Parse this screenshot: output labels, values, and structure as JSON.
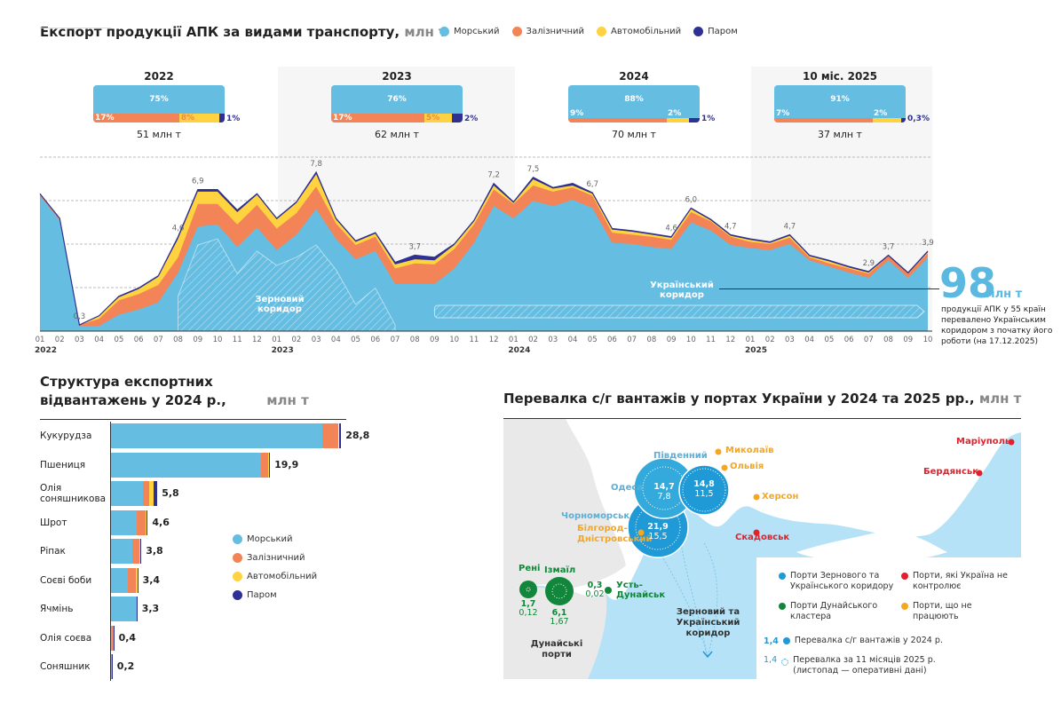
{
  "colors": {
    "marine": "#66bde2",
    "rail": "#f28457",
    "auto": "#ffd23f",
    "ferry": "#2e3192",
    "grain": "#1f9ad6",
    "danube": "#12873b",
    "occupied": "#e3202b",
    "idle": "#f5a623"
  },
  "top": {
    "title": "Експорт продукції АПК за видами транспорту,",
    "unit": "млн т",
    "legend": [
      "Морський",
      "Залізничний",
      "Автомобільний",
      "Паром"
    ],
    "years": [
      {
        "label": "2022",
        "total": "51 млн т",
        "marine": "75%",
        "rail": "17%",
        "auto": "8%",
        "ferry": "1%",
        "shares": [
          75,
          17,
          8,
          1
        ]
      },
      {
        "label": "2023",
        "total": "62 млн т",
        "marine": "76%",
        "rail": "17%",
        "auto": "5%",
        "ferry": "2%",
        "shares": [
          76,
          17,
          5,
          2
        ]
      },
      {
        "label": "2024",
        "total": "70 млн т",
        "marine": "88%",
        "rail": "9%",
        "auto": "2%",
        "ferry": "1%",
        "shares": [
          88,
          9,
          2,
          1
        ]
      },
      {
        "label": "10 міс. 2025",
        "total": "37 млн т",
        "marine": "91%",
        "rail": "7%",
        "auto": "2%",
        "ferry": "0,3%",
        "shares": [
          91,
          7,
          2,
          0.3
        ]
      }
    ],
    "grain_label": "Зерновий коридор",
    "ukr_label": "Український коридор",
    "big_number": "98",
    "big_unit": "млн т",
    "big_text": [
      "продукції АПК у 55 країн",
      "перевалено Українським",
      "коридором з початку його",
      "роботи (на 17.12.2025)"
    ]
  },
  "chart_data": [
    {
      "type": "area",
      "stacked": true,
      "xlabel": "",
      "ylabel": "",
      "grid": true,
      "months": [
        "01",
        "02",
        "03",
        "04",
        "05",
        "06",
        "07",
        "08",
        "09",
        "10",
        "11",
        "12",
        "01",
        "02",
        "03",
        "04",
        "05",
        "06",
        "07",
        "08",
        "09",
        "10",
        "11",
        "12",
        "01",
        "02",
        "03",
        "04",
        "05",
        "06",
        "07",
        "08",
        "09",
        "10",
        "11",
        "12",
        "01",
        "02",
        "03",
        "04",
        "05",
        "06",
        "07",
        "08",
        "09",
        "10"
      ],
      "year_ticks": [
        {
          "index": 0,
          "label": "2022"
        },
        {
          "index": 12,
          "label": "2023"
        },
        {
          "index": 24,
          "label": "2024"
        },
        {
          "index": 36,
          "label": "2025"
        }
      ],
      "series": [
        {
          "name": "Морський",
          "values": [
            6.6,
            5.4,
            0.25,
            0.25,
            0.8,
            1.05,
            1.4,
            2.85,
            5.1,
            5.2,
            4.1,
            5.05,
            3.95,
            4.7,
            5.95,
            4.5,
            3.5,
            3.9,
            2.3,
            2.3,
            2.3,
            3.05,
            4.3,
            6.1,
            5.5,
            6.35,
            6.1,
            6.4,
            6.0,
            4.3,
            4.25,
            4.1,
            4.0,
            5.3,
            4.9,
            4.2,
            4.05,
            3.95,
            4.25,
            3.45,
            3.15,
            2.85,
            2.6,
            3.45,
            2.6,
            3.6
          ]
        },
        {
          "name": "Залізничний",
          "values": [
            0.1,
            0.1,
            0.05,
            0.35,
            0.7,
            0.75,
            0.85,
            0.75,
            1.1,
            1.0,
            1.1,
            1.1,
            1.05,
            1.05,
            1.1,
            0.75,
            0.7,
            0.7,
            0.75,
            1.0,
            0.95,
            0.95,
            0.9,
            0.8,
            0.7,
            0.75,
            0.7,
            0.6,
            0.6,
            0.5,
            0.45,
            0.5,
            0.45,
            0.5,
            0.45,
            0.4,
            0.3,
            0.3,
            0.3,
            0.15,
            0.15,
            0.2,
            0.2,
            0.2,
            0.2,
            0.2
          ]
        },
        {
          "name": "Автомобільний",
          "values": [
            0,
            0,
            0,
            0.15,
            0.15,
            0.25,
            0.4,
            0.9,
            0.6,
            0.6,
            0.6,
            0.5,
            0.45,
            0.5,
            0.6,
            0.2,
            0.15,
            0.15,
            0.2,
            0.2,
            0.2,
            0.2,
            0.15,
            0.2,
            0.05,
            0.3,
            0.15,
            0.1,
            0.1,
            0.15,
            0.15,
            0.1,
            0.1,
            0.15,
            0.05,
            0.05,
            0.1,
            0.05,
            0.1,
            0.05,
            0.1,
            0.05,
            0.05,
            0,
            0,
            0.05
          ]
        },
        {
          "name": "Паром",
          "values": [
            0,
            0,
            0,
            0,
            0.05,
            0.05,
            0.05,
            0.1,
            0.1,
            0.1,
            0.1,
            0.05,
            0.05,
            0.05,
            0.1,
            0.05,
            0.05,
            0.05,
            0.1,
            0.2,
            0.15,
            0.05,
            0.05,
            0.1,
            0.05,
            0.1,
            0.05,
            0.1,
            0.05,
            0.05,
            0.05,
            0.05,
            0.05,
            0.05,
            0.05,
            0.05,
            0.05,
            0.05,
            0.05,
            0.05,
            0.05,
            0.05,
            0.05,
            0.05,
            0.05,
            0.05
          ]
        }
      ],
      "grain_corridor": {
        "start_index": 7,
        "values": [
          1.7,
          4.2,
          4.5,
          2.8,
          3.9,
          3.2,
          3.6,
          4.2,
          3.0,
          1.3,
          2.1,
          0.3
        ]
      },
      "ukrainian_corridor_start_index": 20,
      "point_labels": [
        {
          "index": 2,
          "label": "0,3"
        },
        {
          "index": 7,
          "label": "4,6"
        },
        {
          "index": 8,
          "label": "6,9"
        },
        {
          "index": 14,
          "label": "7,8"
        },
        {
          "index": 19,
          "label": "3,7"
        },
        {
          "index": 23,
          "label": "7,2"
        },
        {
          "index": 25,
          "label": "7,5"
        },
        {
          "index": 28,
          "label": "6,7"
        },
        {
          "index": 32,
          "label": "4,6"
        },
        {
          "index": 33,
          "label": "6,0"
        },
        {
          "index": 35,
          "label": "4,7"
        },
        {
          "index": 38,
          "label": "4,7"
        },
        {
          "index": 42,
          "label": "2,9"
        },
        {
          "index": 43,
          "label": "3,7"
        },
        {
          "index": 45,
          "label": "3,9"
        }
      ],
      "ylim": [
        0,
        8
      ]
    },
    {
      "type": "bar",
      "orientation": "horizontal",
      "stacked": true,
      "title": "Структура експортних відвантажень у 2024 р.,",
      "unit": "млн т",
      "categories": [
        "Кукурудза",
        "Пшениця",
        "Олія соняшникова",
        "Шрот",
        "Ріпак",
        "Соєві боби",
        "Ячмінь",
        "Олія соєва",
        "Соняшник"
      ],
      "totals": [
        "28,8",
        "19,9",
        "5,8",
        "4,6",
        "3,8",
        "3,4",
        "3,3",
        "0,4",
        "0,2"
      ],
      "series": [
        {
          "name": "Морський",
          "values": [
            26.4,
            18.8,
            4.0,
            3.2,
            2.7,
            2.1,
            3.1,
            0.1,
            0
          ]
        },
        {
          "name": "Залізничний",
          "values": [
            2.1,
            0.9,
            0.8,
            1.1,
            0.9,
            1.0,
            0.1,
            0.2,
            0.1
          ]
        },
        {
          "name": "Автомобільний",
          "values": [
            0.1,
            0.1,
            0.5,
            0.1,
            0.1,
            0.2,
            0,
            0,
            0
          ]
        },
        {
          "name": "Паром",
          "values": [
            0.2,
            0.1,
            0.5,
            0.2,
            0.1,
            0.1,
            0.1,
            0.1,
            0.1
          ]
        }
      ],
      "legend": [
        "Морський",
        "Залізничний",
        "Автомобільний",
        "Паром"
      ]
    }
  ],
  "map": {
    "title": "Перевалка с/г вантажів у портах України у 2024 та 2025 рр.,",
    "unit": "млн т",
    "ports_corridor": [
      {
        "name": "Одеса",
        "v2024": "14,7",
        "v2025": "7,8"
      },
      {
        "name": "Південний",
        "v2024": "14,8",
        "v2025": "11,5"
      },
      {
        "name": "Чорноморськ",
        "v2024": "21,9",
        "v2025": "15,5"
      }
    ],
    "ports_danube": [
      {
        "name": "Рені",
        "v2024": "1,7",
        "v2025": "0,12"
      },
      {
        "name": "Ізмаїл",
        "v2024": "6,1",
        "v2025": "1,67"
      },
      {
        "name": "Усть-Дунайськ",
        "v2024": "0,3",
        "v2025": "0,02"
      }
    ],
    "idle": [
      "Миколаїв",
      "Ольвія",
      "Херсон",
      "Білгород-Дністровський"
    ],
    "occupied": [
      "Маріуполь",
      "Бердянськ",
      "Скадовськ"
    ],
    "danube_label": "Дунайські порти",
    "corridor_label": "Зерновий та Український коридор",
    "legend": {
      "corridor": "Порти Зернового та Українського коридору",
      "occupied": "Порти, які Україна не контролює",
      "danube": "Порти Дунайського кластера",
      "idle": "Порти, що не працюють",
      "sample": "1,4",
      "y2024": "Перевалка с/г вантажів у 2024 р.",
      "y2025": "Перевалка за 11 місяців 2025 р. (листопад — оперативні дані)"
    }
  }
}
